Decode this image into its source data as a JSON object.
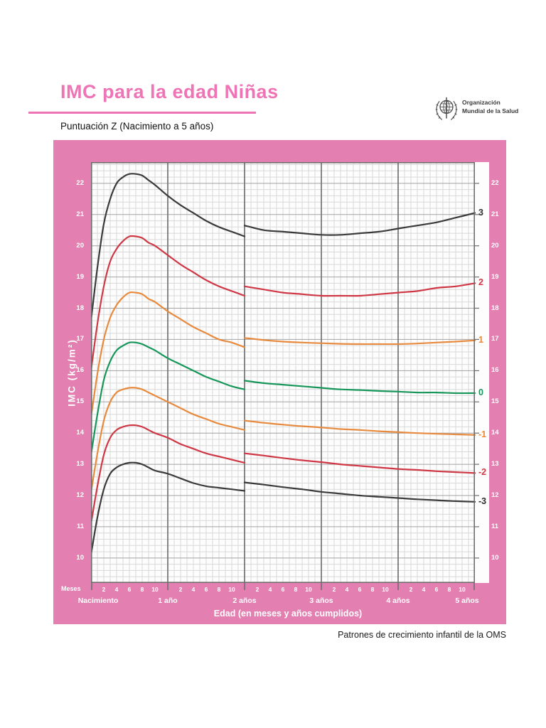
{
  "page": {
    "title": "IMC para la edad Niñas",
    "subtitle": "Puntuación Z (Nacimiento a 5 años)",
    "footer": "Patrones de crecimiento infantil de la OMS",
    "logo": {
      "line1": "Organización",
      "line2": "Mundial de la Salud"
    }
  },
  "colors": {
    "panel_pink": "#e47fb1",
    "title_pink": "#ee74b5",
    "plot_bg": "#fdfdfd",
    "grid_minor": "#d9d9d9",
    "grid_major": "#a3a3a3",
    "grid_year": "#787878",
    "border": "#6e6e6e",
    "curve_black": "#3a3a3a",
    "curve_red": "#cf3745",
    "curve_orange": "#e78a3e",
    "curve_green": "#17965a"
  },
  "chart_data": {
    "type": "line",
    "title": "IMC para la edad Niñas — Puntuación Z (Nacimiento a 5 años)",
    "xlabel": "Edad (en meses y años cumplidos)",
    "ylabel": "IMC (kg/m²)",
    "x_unit_label": "Meses",
    "xlim_months": [
      0,
      60
    ],
    "ylim": [
      9.2,
      22.68
    ],
    "grid": "on",
    "y_ticks": [
      10,
      11,
      12,
      13,
      14,
      15,
      16,
      17,
      18,
      19,
      20,
      21,
      22
    ],
    "month_ticks": [
      2,
      4,
      6,
      8,
      10
    ],
    "year_labels": [
      {
        "label": "Nacimiento",
        "month": 1.1
      },
      {
        "label": "1 año",
        "month": 12
      },
      {
        "label": "2 años",
        "month": 24
      },
      {
        "label": "3 años",
        "month": 36
      },
      {
        "label": "4 años",
        "month": 48
      },
      {
        "label": "5 años",
        "month": 58.8
      }
    ],
    "discontinuity_month": 24,
    "seg1_months": [
      0,
      1,
      2,
      3,
      4,
      5,
      6,
      7,
      8,
      9,
      10,
      12,
      14,
      16,
      18,
      20,
      22,
      24
    ],
    "seg2_months": [
      24,
      27,
      30,
      33,
      36,
      39,
      42,
      45,
      48,
      51,
      54,
      57,
      60
    ],
    "series": [
      {
        "name": "+3 SD",
        "label": "3",
        "color": "#3a3a3a",
        "label_color": "#2e2e2e",
        "seg1": [
          17.6,
          19.3,
          20.7,
          21.5,
          22.0,
          22.2,
          22.3,
          22.3,
          22.25,
          22.1,
          21.95,
          21.6,
          21.3,
          21.05,
          20.8,
          20.6,
          20.45,
          20.3
        ],
        "seg2": [
          20.65,
          20.5,
          20.45,
          20.4,
          20.35,
          20.35,
          20.4,
          20.45,
          20.55,
          20.65,
          20.75,
          20.9,
          21.05
        ]
      },
      {
        "name": "+2 SD",
        "label": "2",
        "color": "#cf3745",
        "label_color": "#cf3745",
        "seg1": [
          16.0,
          17.5,
          18.7,
          19.5,
          19.9,
          20.15,
          20.3,
          20.3,
          20.25,
          20.1,
          20.0,
          19.7,
          19.4,
          19.15,
          18.9,
          18.7,
          18.55,
          18.4
        ],
        "seg2": [
          18.7,
          18.6,
          18.5,
          18.45,
          18.4,
          18.4,
          18.4,
          18.45,
          18.5,
          18.55,
          18.65,
          18.7,
          18.8
        ]
      },
      {
        "name": "+1 SD",
        "label": "1",
        "color": "#e78a3e",
        "label_color": "#e78a3e",
        "seg1": [
          14.5,
          15.9,
          17.0,
          17.7,
          18.1,
          18.35,
          18.5,
          18.5,
          18.45,
          18.3,
          18.2,
          17.9,
          17.65,
          17.4,
          17.2,
          17.0,
          16.9,
          16.75
        ],
        "seg2": [
          17.05,
          16.98,
          16.93,
          16.9,
          16.88,
          16.86,
          16.85,
          16.85,
          16.85,
          16.87,
          16.9,
          16.93,
          16.97
        ]
      },
      {
        "name": "0 (mediana)",
        "label": "0",
        "color": "#17965a",
        "label_color": "#17965a",
        "seg1": [
          13.3,
          14.6,
          15.7,
          16.3,
          16.65,
          16.8,
          16.9,
          16.9,
          16.85,
          16.75,
          16.65,
          16.4,
          16.2,
          16.0,
          15.8,
          15.65,
          15.5,
          15.4
        ],
        "seg2": [
          15.68,
          15.6,
          15.55,
          15.5,
          15.45,
          15.4,
          15.38,
          15.35,
          15.33,
          15.3,
          15.3,
          15.28,
          15.28
        ]
      },
      {
        "name": "-1 SD",
        "label": "-1",
        "color": "#e78a3e",
        "label_color": "#e78a3e",
        "seg1": [
          12.1,
          13.35,
          14.4,
          15.0,
          15.3,
          15.4,
          15.45,
          15.45,
          15.4,
          15.3,
          15.2,
          15.0,
          14.8,
          14.6,
          14.45,
          14.3,
          14.2,
          14.1
        ],
        "seg2": [
          14.4,
          14.33,
          14.27,
          14.22,
          14.18,
          14.13,
          14.1,
          14.06,
          14.03,
          14.0,
          13.98,
          13.96,
          13.94
        ]
      },
      {
        "name": "-2 SD",
        "label": "-2",
        "color": "#cf3745",
        "label_color": "#cf3745",
        "seg1": [
          11.1,
          12.3,
          13.3,
          13.85,
          14.1,
          14.2,
          14.25,
          14.25,
          14.2,
          14.1,
          14.0,
          13.85,
          13.65,
          13.5,
          13.35,
          13.25,
          13.15,
          13.05
        ],
        "seg2": [
          13.35,
          13.28,
          13.2,
          13.13,
          13.07,
          13.0,
          12.95,
          12.9,
          12.85,
          12.82,
          12.78,
          12.75,
          12.72
        ]
      },
      {
        "name": "-3 SD",
        "label": "-3",
        "color": "#3a3a3a",
        "label_color": "#2e2e2e",
        "seg1": [
          10.1,
          11.3,
          12.2,
          12.7,
          12.9,
          13.0,
          13.05,
          13.05,
          13.0,
          12.9,
          12.8,
          12.7,
          12.55,
          12.4,
          12.3,
          12.25,
          12.2,
          12.15
        ],
        "seg2": [
          12.42,
          12.35,
          12.27,
          12.2,
          12.12,
          12.06,
          12.0,
          11.96,
          11.92,
          11.88,
          11.85,
          11.82,
          11.8
        ]
      }
    ]
  }
}
